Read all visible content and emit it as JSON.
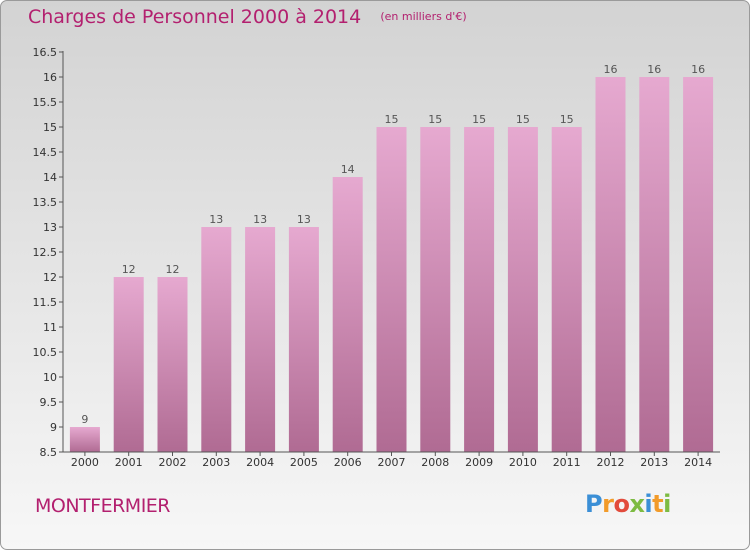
{
  "header": {
    "title": "Charges de Personnel 2000 à 2014",
    "subtitle": "(en milliers d'€)"
  },
  "footer": {
    "commune": "MONTFERMIER",
    "logo_text": "Proxiti"
  },
  "colors": {
    "accent": "#b3206f",
    "bar_top": "#e6a9d0",
    "bar_bottom": "#b06b93",
    "logo": [
      "#3b8fd6",
      "#f29b2a",
      "#e24b3c",
      "#7dbb42",
      "#3b8fd6",
      "#f29b2a",
      "#7dbb42"
    ]
  },
  "chart_data": {
    "type": "bar",
    "categories": [
      "2000",
      "2001",
      "2002",
      "2003",
      "2004",
      "2005",
      "2006",
      "2007",
      "2008",
      "2009",
      "2010",
      "2011",
      "2012",
      "2013",
      "2014"
    ],
    "values": [
      9,
      12,
      12,
      13,
      13,
      13,
      14,
      15,
      15,
      15,
      15,
      15,
      16,
      16,
      16
    ],
    "ylim": [
      8.5,
      16.5
    ],
    "yticks": [
      "8.5",
      "9",
      "9.5",
      "10",
      "10.5",
      "11",
      "11.5",
      "12",
      "12.5",
      "13",
      "13.5",
      "14",
      "14.5",
      "15",
      "15.5",
      "16",
      "16.5"
    ],
    "grid": false
  }
}
